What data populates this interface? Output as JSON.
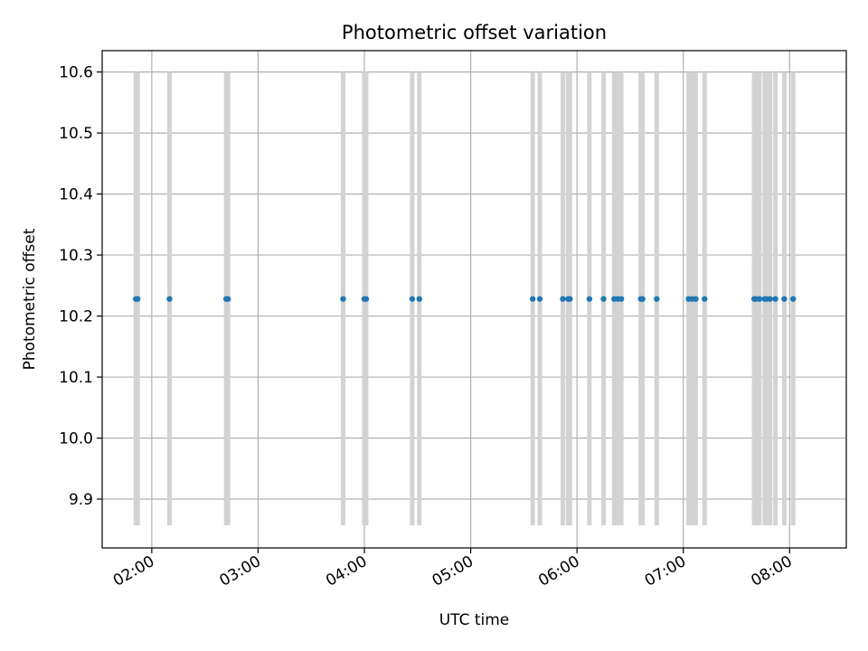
{
  "chart_data": {
    "type": "scatter",
    "title": "Photometric offset variation",
    "xlabel": "UTC time",
    "ylabel": "Photometric offset",
    "x_ticks": [
      "02:00",
      "03:00",
      "04:00",
      "05:00",
      "06:00",
      "07:00",
      "08:00"
    ],
    "y_ticks": [
      "9.9",
      "10.0",
      "10.1",
      "10.2",
      "10.3",
      "10.4",
      "10.5",
      "10.6"
    ],
    "xlim": [
      "01:32",
      "08:32"
    ],
    "ylim": [
      9.82,
      10.635
    ],
    "grid": true,
    "marker_color": "#1f77b4",
    "bar_color": "#d3d3d3",
    "span_range": [
      9.857,
      10.6
    ],
    "x": [
      "01:51",
      "01:52",
      "02:10",
      "02:42",
      "02:43",
      "03:48",
      "04:00",
      "04:01",
      "04:27",
      "04:31",
      "05:35",
      "05:39",
      "05:52",
      "05:55",
      "05:56",
      "06:07",
      "06:15",
      "06:21",
      "06:23",
      "06:25",
      "06:36",
      "06:37",
      "06:45",
      "07:03",
      "07:05",
      "07:07",
      "07:12",
      "07:40",
      "07:41",
      "07:43",
      "07:46",
      "07:47",
      "07:49",
      "07:52",
      "07:57",
      "08:02"
    ],
    "y": [
      10.228,
      10.228,
      10.228,
      10.228,
      10.228,
      10.228,
      10.228,
      10.228,
      10.228,
      10.228,
      10.228,
      10.228,
      10.228,
      10.228,
      10.228,
      10.228,
      10.228,
      10.228,
      10.228,
      10.228,
      10.228,
      10.228,
      10.228,
      10.228,
      10.228,
      10.228,
      10.228,
      10.228,
      10.228,
      10.228,
      10.228,
      10.228,
      10.228,
      10.228,
      10.228,
      10.228
    ]
  }
}
